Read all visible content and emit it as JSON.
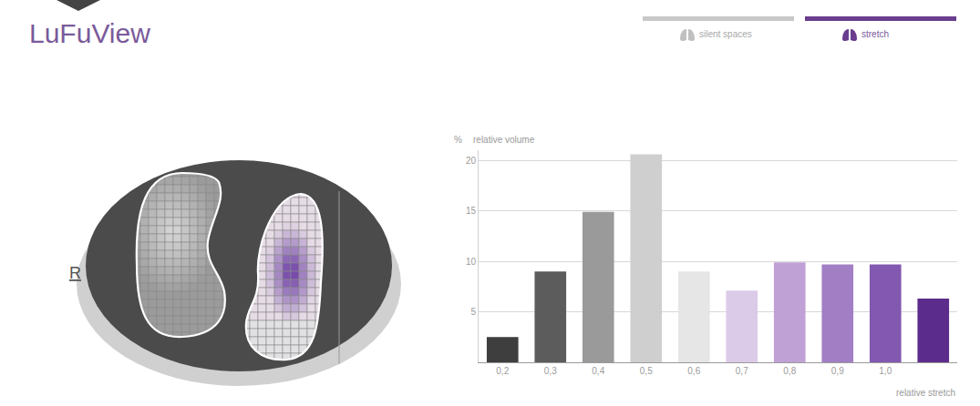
{
  "header": {
    "title": "LuFuView",
    "tabs": [
      "silent spaces",
      "stretch"
    ]
  },
  "image": {
    "side_label": "R"
  },
  "chart_data": {
    "type": "bar",
    "ylabel_unit": "%",
    "ylabel": "relative volume",
    "xlabel": "relative stretch",
    "categories": [
      "0,2",
      "0,3",
      "0,4",
      "0,5",
      "0,6",
      "0,7",
      "0,8",
      "0,9",
      "1,0",
      null
    ],
    "values": [
      2.5,
      9.0,
      14.9,
      20.6,
      9.0,
      7.1,
      9.9,
      9.7,
      9.7,
      6.3
    ],
    "colors": [
      "#3e3e3e",
      "#5c5c5c",
      "#9a9a9a",
      "#cfcfcf",
      "#e6e6e6",
      "#dccbe8",
      "#bfa1d6",
      "#a27ec5",
      "#8258b0",
      "#5c2c8c"
    ],
    "ylim": [
      0,
      21
    ],
    "yticks": [
      5,
      10,
      15,
      20
    ],
    "grid": true
  }
}
